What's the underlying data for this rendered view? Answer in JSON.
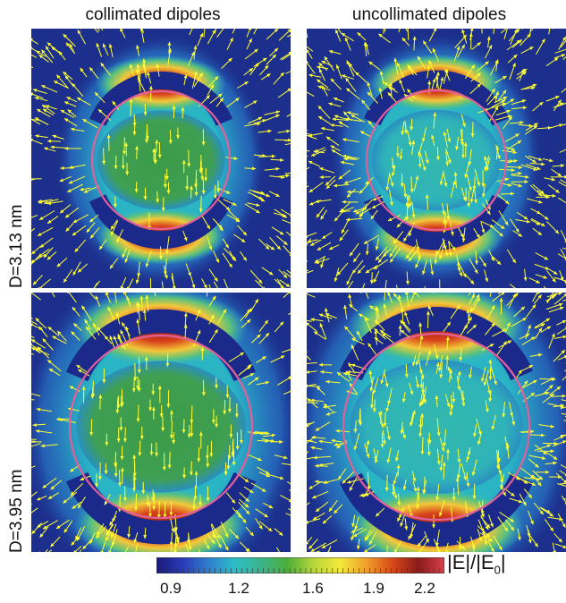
{
  "columns": [
    {
      "title": "collimated dipoles"
    },
    {
      "title": "uncollimated dipoles"
    }
  ],
  "rows": [
    {
      "label": "D=3.13 nm"
    },
    {
      "label": "D=3.95 nm"
    }
  ],
  "colorbar": {
    "label_main": "|E|/|E",
    "label_sub": "0",
    "label_end": "|",
    "ticks": [
      "0.9",
      "1.2",
      "1.6",
      "1.9",
      "2.2"
    ],
    "colors": [
      "#1a1a7a",
      "#2a3ab8",
      "#2f7fd0",
      "#2bbfc7",
      "#3ab58a",
      "#4caf3a",
      "#b8d63a",
      "#f2e83a",
      "#f0a02a",
      "#d84a1a",
      "#8a1a1a",
      "#d8404a"
    ]
  },
  "colors": {
    "arrow": "#ffff33",
    "circle": "#e0609a",
    "background": "#1c2f8c"
  }
}
